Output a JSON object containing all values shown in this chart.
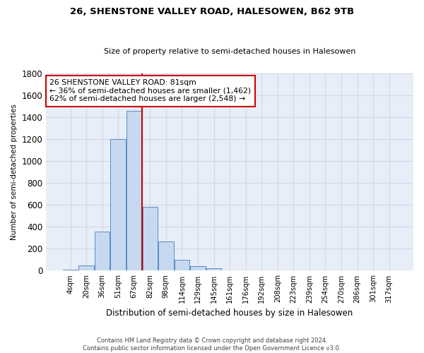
{
  "title": "26, SHENSTONE VALLEY ROAD, HALESOWEN, B62 9TB",
  "subtitle": "Size of property relative to semi-detached houses in Halesowen",
  "xlabel": "Distribution of semi-detached houses by size in Halesowen",
  "ylabel": "Number of semi-detached properties",
  "footer_line1": "Contains HM Land Registry data © Crown copyright and database right 2024.",
  "footer_line2": "Contains public sector information licensed under the Open Government Licence v3.0.",
  "annotation_title": "26 SHENSTONE VALLEY ROAD: 81sqm",
  "annotation_line1": "← 36% of semi-detached houses are smaller (1,462)",
  "annotation_line2": "62% of semi-detached houses are larger (2,548) →",
  "bar_labels": [
    "4sqm",
    "20sqm",
    "36sqm",
    "51sqm",
    "67sqm",
    "82sqm",
    "98sqm",
    "114sqm",
    "129sqm",
    "145sqm",
    "161sqm",
    "176sqm",
    "192sqm",
    "208sqm",
    "223sqm",
    "239sqm",
    "254sqm",
    "270sqm",
    "286sqm",
    "301sqm",
    "317sqm"
  ],
  "bar_values": [
    10,
    50,
    360,
    1200,
    1460,
    580,
    265,
    100,
    40,
    20,
    5,
    5,
    5,
    5,
    0,
    0,
    0,
    0,
    0,
    0,
    0
  ],
  "bar_color": "#c6d9f0",
  "bar_edge_color": "#5b8ac5",
  "vline_index": 5,
  "vline_color": "#cc0000",
  "ylim": [
    0,
    1800
  ],
  "yticks": [
    0,
    200,
    400,
    600,
    800,
    1000,
    1200,
    1400,
    1600,
    1800
  ],
  "annotation_box_color": "#cc0000",
  "grid_color": "#d0d8e8",
  "bg_color": "#e8eef8",
  "title_fontsize": 9.5,
  "subtitle_fontsize": 8.0
}
